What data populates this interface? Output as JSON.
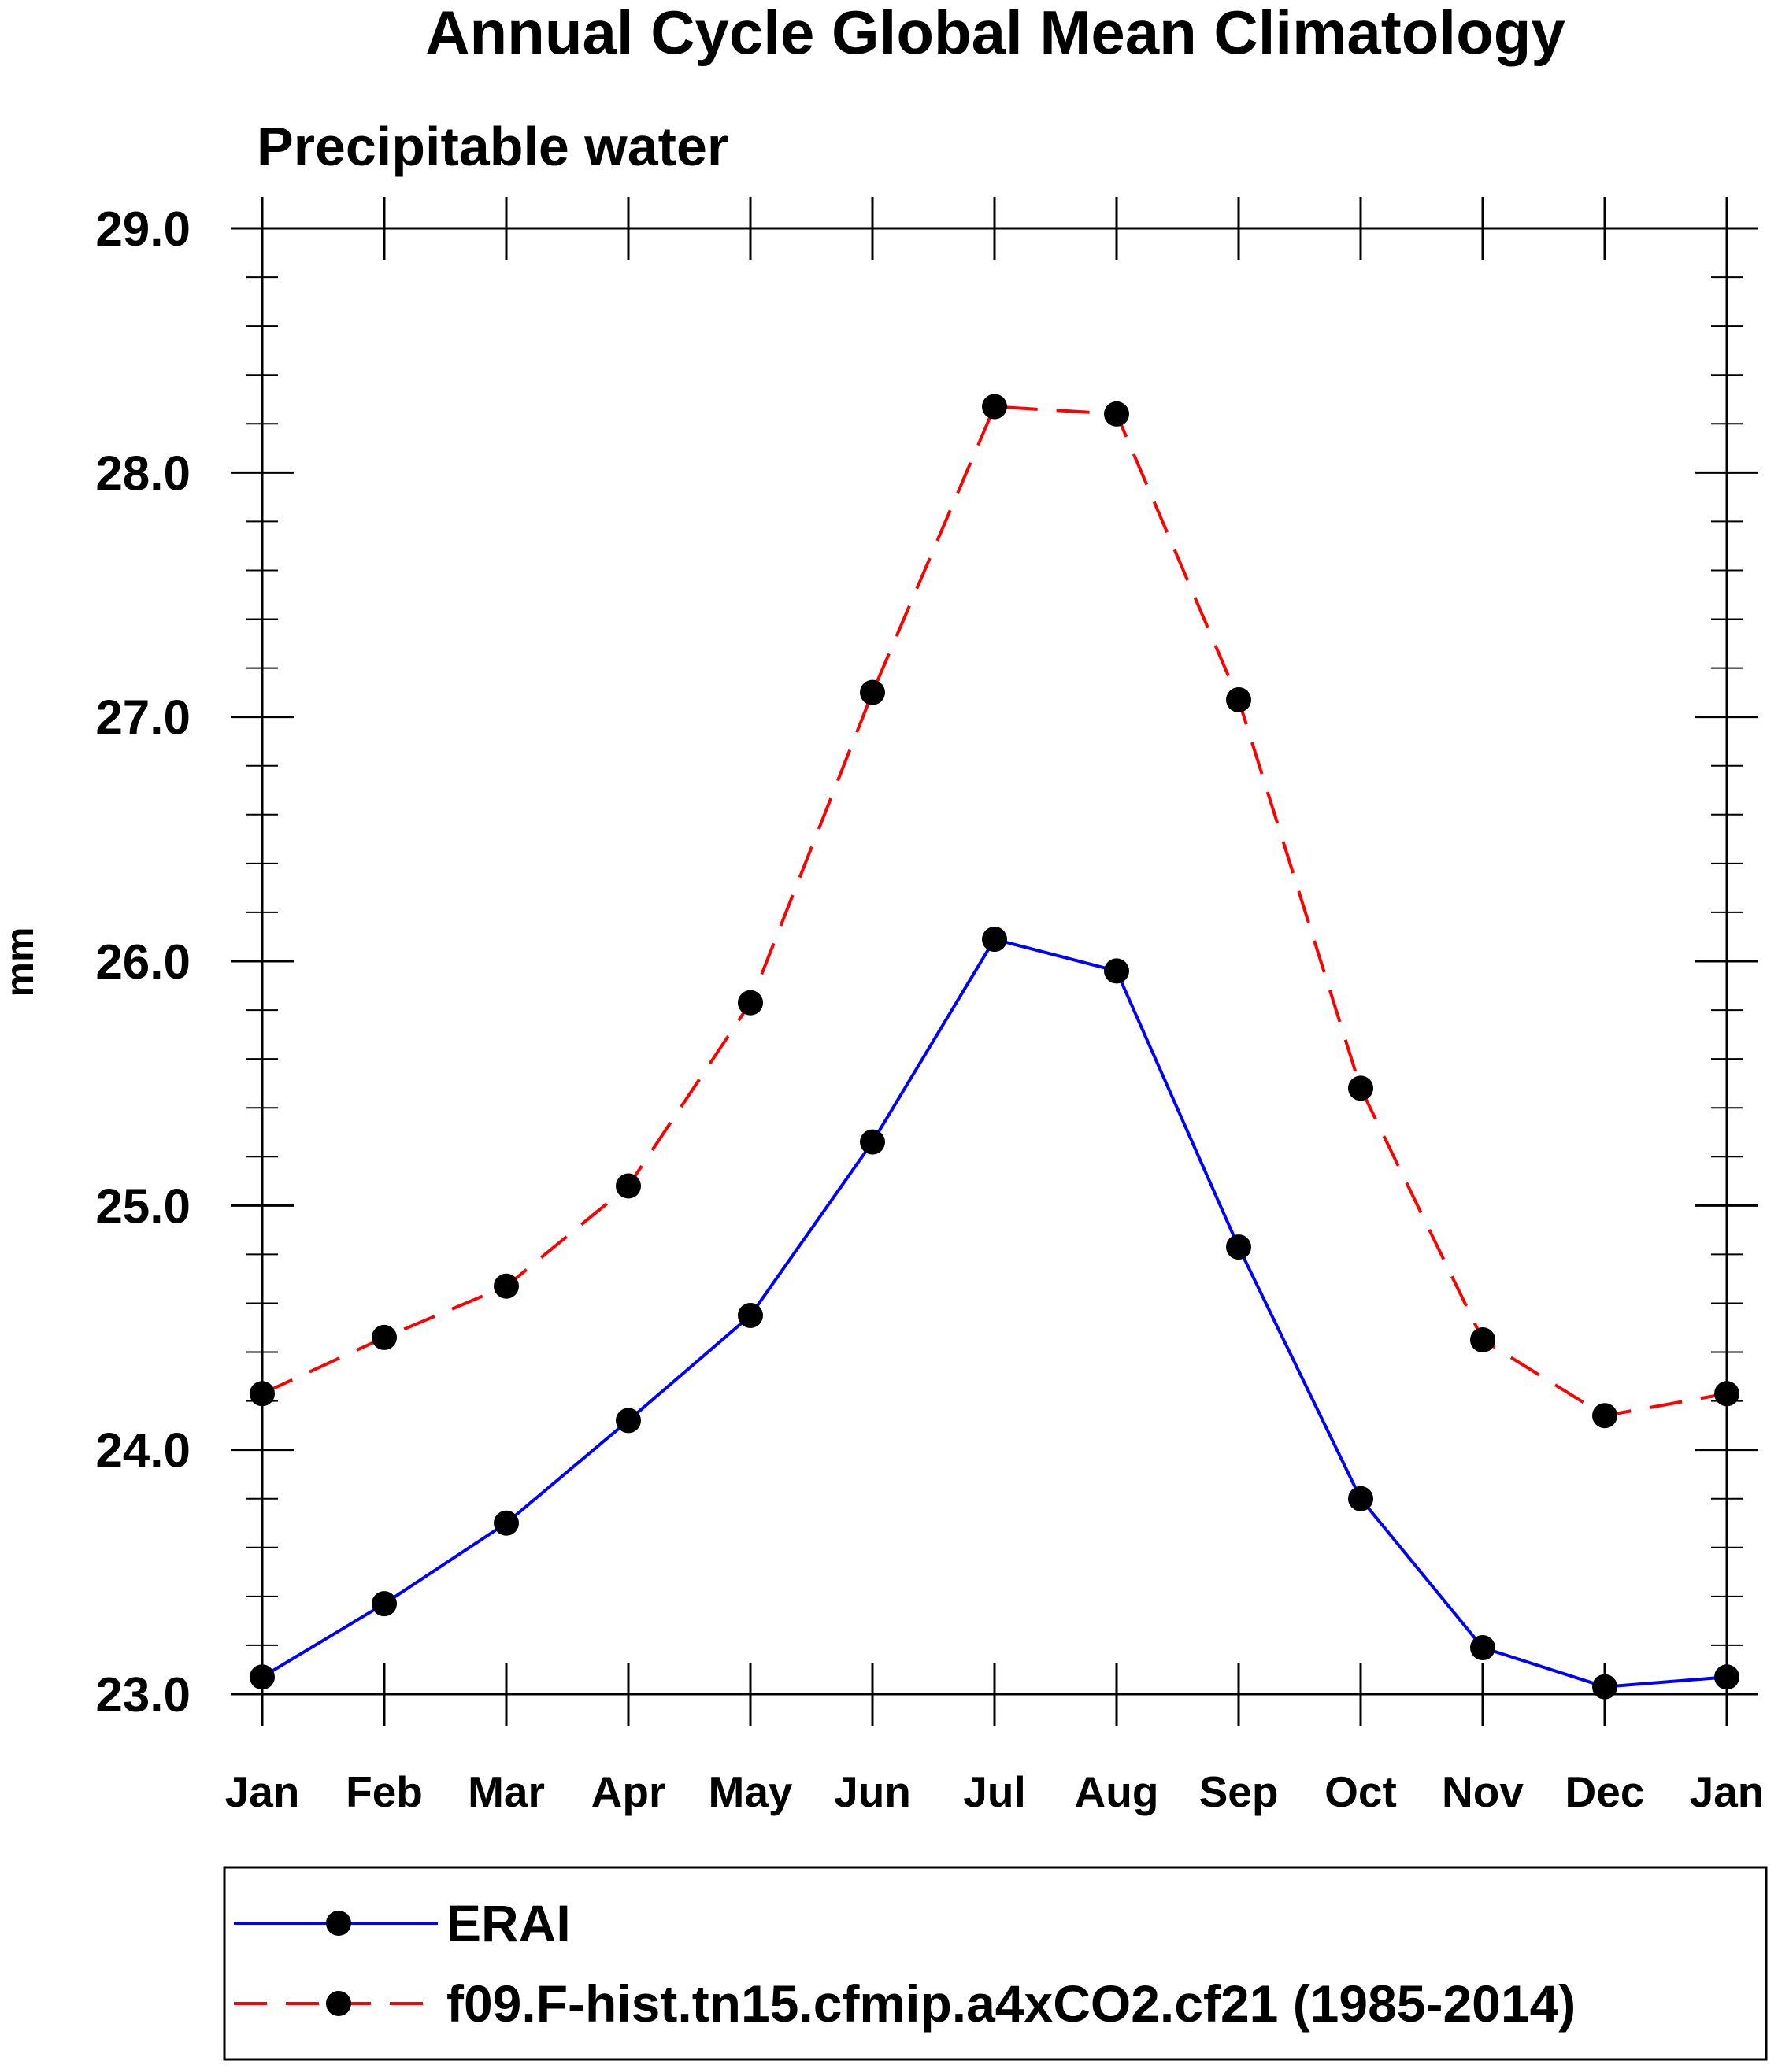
{
  "chart_data": {
    "type": "line",
    "title": "Annual Cycle Global Mean Climatology",
    "subtitle": "Precipitable water",
    "xlabel": "",
    "ylabel": "mm",
    "categories": [
      "Jan",
      "Feb",
      "Mar",
      "Apr",
      "May",
      "Jun",
      "Jul",
      "Aug",
      "Sep",
      "Oct",
      "Nov",
      "Dec",
      "Jan"
    ],
    "ylim": [
      23.0,
      29.0
    ],
    "yticks": [
      "23.0",
      "24.0",
      "25.0",
      "26.0",
      "27.0",
      "28.0",
      "29.0"
    ],
    "yminor_step": 0.2,
    "grid": false,
    "legend_position": "bottom",
    "series": [
      {
        "name": "ERAI",
        "color": "#0000ff",
        "dash": "solid",
        "marker": "circle",
        "values": [
          23.07,
          23.37,
          23.7,
          24.12,
          24.55,
          25.26,
          26.09,
          25.96,
          24.83,
          23.8,
          23.19,
          23.03,
          23.07
        ]
      },
      {
        "name": "f09.F-hist.tn15.cfmip.a4xCO2.cf21 (1985-2014)",
        "color": "#ff0000",
        "dash": "dashed",
        "marker": "circle",
        "values": [
          24.23,
          24.46,
          24.67,
          25.08,
          25.83,
          27.1,
          28.27,
          28.24,
          27.07,
          25.48,
          24.45,
          24.14,
          24.23
        ]
      }
    ]
  }
}
